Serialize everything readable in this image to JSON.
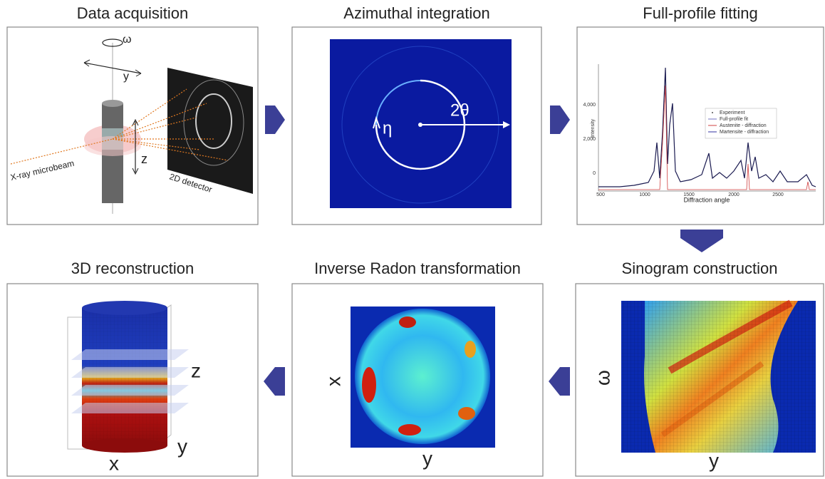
{
  "panels": [
    {
      "title": "Data acquisition",
      "labels": [
        "ω",
        "y",
        "z",
        "X-ray microbeam",
        "2D detector"
      ]
    },
    {
      "title": "Azimuthal integration",
      "labels": [
        "η",
        "2θ"
      ]
    },
    {
      "title": "Full-profile fitting",
      "plot": {
        "y_label": "Intensity",
        "x_label": "Diffraction angle",
        "xticks": [
          "500",
          "1000",
          "1500",
          "2000",
          "2500"
        ],
        "yticks": [
          "0",
          "2,000",
          "4,000"
        ],
        "legend": [
          "Experiment",
          "Full-profile fit",
          "Austenite - diffraction",
          "Martensite - diffraction"
        ]
      }
    },
    {
      "title": "3D reconstruction",
      "labels": [
        "z",
        "y",
        "x"
      ]
    },
    {
      "title": "Inverse Radon transformation",
      "labels": [
        "x",
        "y"
      ]
    },
    {
      "title": "Sinogram construction",
      "labels": [
        "ω",
        "y"
      ]
    }
  ]
}
